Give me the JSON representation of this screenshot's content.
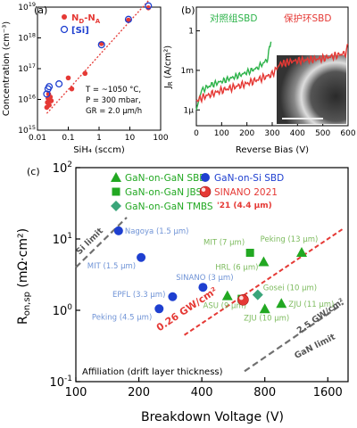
{
  "chart_data": [
    {
      "panel": "(a)",
      "type": "scatter",
      "xscale": "log",
      "yscale": "log",
      "xlabel": "SiH4 (sccm)",
      "ylabel": "Concentration (cm-3)",
      "xlim": [
        0.01,
        100
      ],
      "ylim": [
        1000000000000000.0,
        1e+19
      ],
      "xticks": [
        "0.01",
        "0.1",
        "1",
        "10",
        "100"
      ],
      "yticks": [
        "10^15",
        "10^16",
        "10^17",
        "10^18",
        "10^19"
      ],
      "legend": [
        "N_D-N_A",
        "[Si]"
      ],
      "legend_colors": [
        "#e53935",
        "#1e3fd0"
      ],
      "annotation": [
        "T = ~1050 °C,",
        "P = 300 mbar,",
        "GR = 2.0 µm/h"
      ],
      "series": [
        {
          "name": "N_D-N_A",
          "points": [
            [
              0.02,
              5500000000000000.0
            ],
            [
              0.021,
              8000000000000000.0
            ],
            [
              0.022,
              1.1e+16
            ],
            [
              0.023,
              1.5e+16
            ],
            [
              0.024,
              6500000000000000.0
            ],
            [
              0.025,
              9500000000000000.0
            ],
            [
              0.026,
              1.2e+16
            ],
            [
              0.028,
              9000000000000000.0
            ],
            [
              0.1,
              5e+16
            ],
            [
              0.13,
              2.2e+16
            ],
            [
              0.35,
              7e+16
            ],
            [
              1.2,
              6.5e+17
            ],
            [
              9,
              3.8e+18
            ],
            [
              40,
              9.5e+18
            ]
          ]
        },
        {
          "name": "[Si]",
          "points": [
            [
              0.02,
              1.5e+16
            ],
            [
              0.022,
              2.2e+16
            ],
            [
              0.024,
              2.6e+16
            ],
            [
              0.05,
              3.2e+16
            ],
            [
              1.2,
              6e+17
            ],
            [
              9,
              4e+18
            ],
            [
              40,
              1.1e+19
            ]
          ]
        }
      ],
      "fit_line": [
        [
          0.02,
          3500000000000000.0
        ],
        [
          80,
          3.5e+19
        ]
      ]
    },
    {
      "panel": "(b)",
      "type": "line",
      "yscale": "log",
      "xlabel": "Reverse Bias (V)",
      "ylabel": "J_R (A/cm²)",
      "xlim": [
        0,
        600
      ],
      "xticks": [
        "0",
        "100",
        "200",
        "300",
        "400",
        "500",
        "600"
      ],
      "yticks": [
        "1µ",
        "1m",
        "1"
      ],
      "series": [
        {
          "name": "对照组SBD",
          "color": "#2db34a",
          "points": [
            [
              0,
              1e-06
            ],
            [
              20,
              3e-05
            ],
            [
              60,
              8e-05
            ],
            [
              120,
              0.0002
            ],
            [
              180,
              0.0005
            ],
            [
              240,
              0.0015
            ],
            [
              280,
              0.006
            ],
            [
              295,
              0.15
            ]
          ]
        },
        {
          "name": "保护环SBD",
          "color": "#e53935",
          "points": [
            [
              0,
              5e-06
            ],
            [
              30,
              1e-05
            ],
            [
              100,
              3e-05
            ],
            [
              200,
              0.0001
            ],
            [
              300,
              0.0005
            ],
            [
              330,
              0.003
            ],
            [
              380,
              0.005
            ],
            [
              500,
              0.008
            ],
            [
              590,
              0.02
            ],
            [
              600,
              0.1
            ]
          ]
        }
      ],
      "inset": "device micrograph"
    },
    {
      "panel": "(c)",
      "type": "scatter",
      "xscale": "log",
      "yscale": "log",
      "xlabel": "Breakdown Voltage (V)",
      "ylabel": "R_on,sp (mΩ·cm²)",
      "xlim": [
        100,
        2000
      ],
      "ylim": [
        0.1,
        100
      ],
      "xticks": [
        {
          "v": 100,
          "label": "100"
        },
        {
          "v": 200,
          "label": "200"
        },
        {
          "v": 400,
          "label": "400"
        },
        {
          "v": 800,
          "label": "800"
        },
        {
          "v": 1600,
          "label": "1600"
        }
      ],
      "yticks": [
        {
          "v": 0.1,
          "label": "10^-1"
        },
        {
          "v": 1,
          "label": "10^0"
        },
        {
          "v": 10,
          "label": "10^1"
        },
        {
          "v": 100,
          "label": "10^2"
        }
      ],
      "legend": [
        {
          "label": "GaN-on-GaN SBD",
          "marker": "triangle",
          "color": "#22a822"
        },
        {
          "label": "GaN-on-Si SBD",
          "marker": "circle",
          "color": "#1e3fd0"
        },
        {
          "label": "GaN-on-GaN JBS",
          "marker": "square",
          "color": "#22a822"
        },
        {
          "label": "SINANO 2021",
          "marker": "sphere",
          "color": "#e53935"
        },
        {
          "label": "GaN-on-GaN TMBS",
          "marker": "diamond",
          "color": "#3aa57a"
        },
        {
          "label": "'21 (4.4 µm)",
          "marker": "none",
          "color": "#e53935"
        }
      ],
      "limits": [
        {
          "label": "Si limit",
          "points": [
            [
              100,
              4
            ],
            [
              175,
              20
            ]
          ]
        },
        {
          "label": "2.5 GW/cm²",
          "points": [
            [
              640,
              0.14
            ],
            [
              1900,
              1.25
            ]
          ]
        }
      ],
      "extra_labels": [
        {
          "text": "GaN limit",
          "v": [
            1130,
            0.21
          ]
        }
      ],
      "fom_line": {
        "label": "0.26 GW/cm²",
        "points": [
          [
            330,
            0.45
          ],
          [
            1900,
            14
          ]
        ]
      },
      "points": [
        {
          "group": "GaN-on-Si SBD",
          "label": "Nagoya (1.5 µm)",
          "x": 160,
          "y": 13
        },
        {
          "group": "GaN-on-Si SBD",
          "label": "MIT (1.5 µm)",
          "x": 205,
          "y": 5.5
        },
        {
          "group": "GaN-on-Si SBD",
          "label": "EPFL (3.3 µm)",
          "x": 290,
          "y": 1.55
        },
        {
          "group": "GaN-on-Si SBD",
          "label": "Peking (4.5 µm)",
          "x": 250,
          "y": 1.05
        },
        {
          "group": "GaN-on-Si SBD",
          "label": "SINANO (3 µm)",
          "x": 405,
          "y": 2.1
        },
        {
          "group": "GaN-on-GaN SBD",
          "label": "Peking (13 µm)",
          "x": 1200,
          "y": 6.5
        },
        {
          "group": "GaN-on-GaN SBD",
          "label": "HRL (6 µm)",
          "x": 790,
          "y": 4.8
        },
        {
          "group": "GaN-on-GaN SBD",
          "label": "ASU (9 µm)",
          "x": 530,
          "y": 1.6
        },
        {
          "group": "GaN-on-GaN SBD",
          "label": "ZJU (10 µm)",
          "x": 800,
          "y": 1.05
        },
        {
          "group": "GaN-on-GaN SBD",
          "label": "ZJU (11 µm)",
          "x": 960,
          "y": 1.25
        },
        {
          "group": "GaN-on-GaN JBS",
          "label": "MIT (7 µm)",
          "x": 680,
          "y": 6.4
        },
        {
          "group": "GaN-on-GaN JBS",
          "label": "",
          "x": 620,
          "y": 1.45
        },
        {
          "group": "GaN-on-GaN TMBS",
          "label": "Gosei (10 µm)",
          "x": 740,
          "y": 1.65
        },
        {
          "group": "SINANO 2021",
          "label": "",
          "x": 630,
          "y": 1.4
        }
      ],
      "footnote": "Affiliation (drift layer thickness)"
    }
  ],
  "labels": {
    "a": "(a)",
    "b": "(b)",
    "c": "(c)",
    "a_xlabel": "SiH₄ (sccm)",
    "a_ylabel": "Concentration (cm⁻³)",
    "a_leg1": "N",
    "a_leg1_sub1": "D",
    "a_leg1_mid": "-N",
    "a_leg1_sub2": "A",
    "a_leg2": "[Si]",
    "a_ann1": "T = ~1050 °C,",
    "a_ann2": "P = 300 mbar,",
    "a_ann3": "GR = 2.0 µm/h",
    "b_xlabel": "Reverse Bias (V)",
    "b_ylabel_main": "J",
    "b_ylabel_sub": "R",
    "b_ylabel_rest": " (A/cm²)",
    "b_leg1": "对照组SBD",
    "b_leg2": "保护环SBD",
    "c_xlabel": "Breakdown Voltage (V)",
    "c_ylabel_main": "R",
    "c_ylabel_sub": "on,sp",
    "c_ylabel_rest": " (mΩ·cm²)",
    "c_fom": "0.26 GW/cm²",
    "c_footnote": "Affiliation (drift layer thickness)"
  },
  "colors": {
    "red": "#e53935",
    "blue": "#1e3fd0",
    "green": "#22a822",
    "teal": "#3aa57a",
    "gray": "#707070",
    "label_blue": "#6f93d6",
    "label_green": "#7dbb5e"
  }
}
